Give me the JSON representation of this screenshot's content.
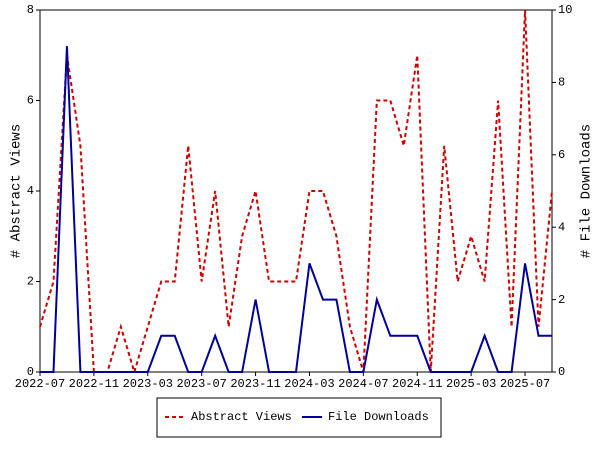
{
  "chart_data": {
    "type": "line",
    "categories": [
      "2022-07",
      null,
      null,
      null,
      "2022-11",
      null,
      null,
      null,
      "2023-03",
      null,
      null,
      null,
      "2023-07",
      null,
      null,
      null,
      "2023-11",
      null,
      null,
      null,
      "2024-03",
      null,
      null,
      null,
      "2024-07",
      null,
      null,
      null,
      "2024-11",
      null,
      null,
      null,
      "2025-03",
      null,
      null,
      null,
      "2025-07",
      null,
      null
    ],
    "y_label": "# Abstract Views",
    "y2_label": "# File Downloads",
    "ylim": [
      0,
      8
    ],
    "yticks": [
      0,
      2,
      4,
      6,
      8
    ],
    "y2lim": [
      0,
      10
    ],
    "y2ticks": [
      0,
      2,
      4,
      6,
      8,
      10
    ],
    "legend": "bottom",
    "series": [
      {
        "name": "Abstract Views",
        "color": "#cc0000",
        "dash": true,
        "values": [
          1,
          2,
          7,
          5,
          0,
          0,
          1,
          0,
          1,
          2,
          2,
          5,
          2,
          4,
          1,
          3,
          4,
          2,
          2,
          2,
          4,
          4,
          3,
          1,
          0,
          6,
          6,
          5,
          7,
          0,
          5,
          2,
          3,
          2,
          6,
          1,
          8,
          1,
          4
        ]
      },
      {
        "name": "File Downloads",
        "color": "#000099",
        "axis": "y2",
        "dash": false,
        "values": [
          0,
          0,
          9,
          0,
          0,
          0,
          0,
          0,
          0,
          1,
          1,
          0,
          0,
          1,
          0,
          0,
          2,
          0,
          0,
          0,
          3,
          2,
          2,
          0,
          0,
          2,
          1,
          1,
          1,
          0,
          0,
          0,
          0,
          1,
          0,
          0,
          3,
          1,
          1
        ]
      }
    ]
  }
}
